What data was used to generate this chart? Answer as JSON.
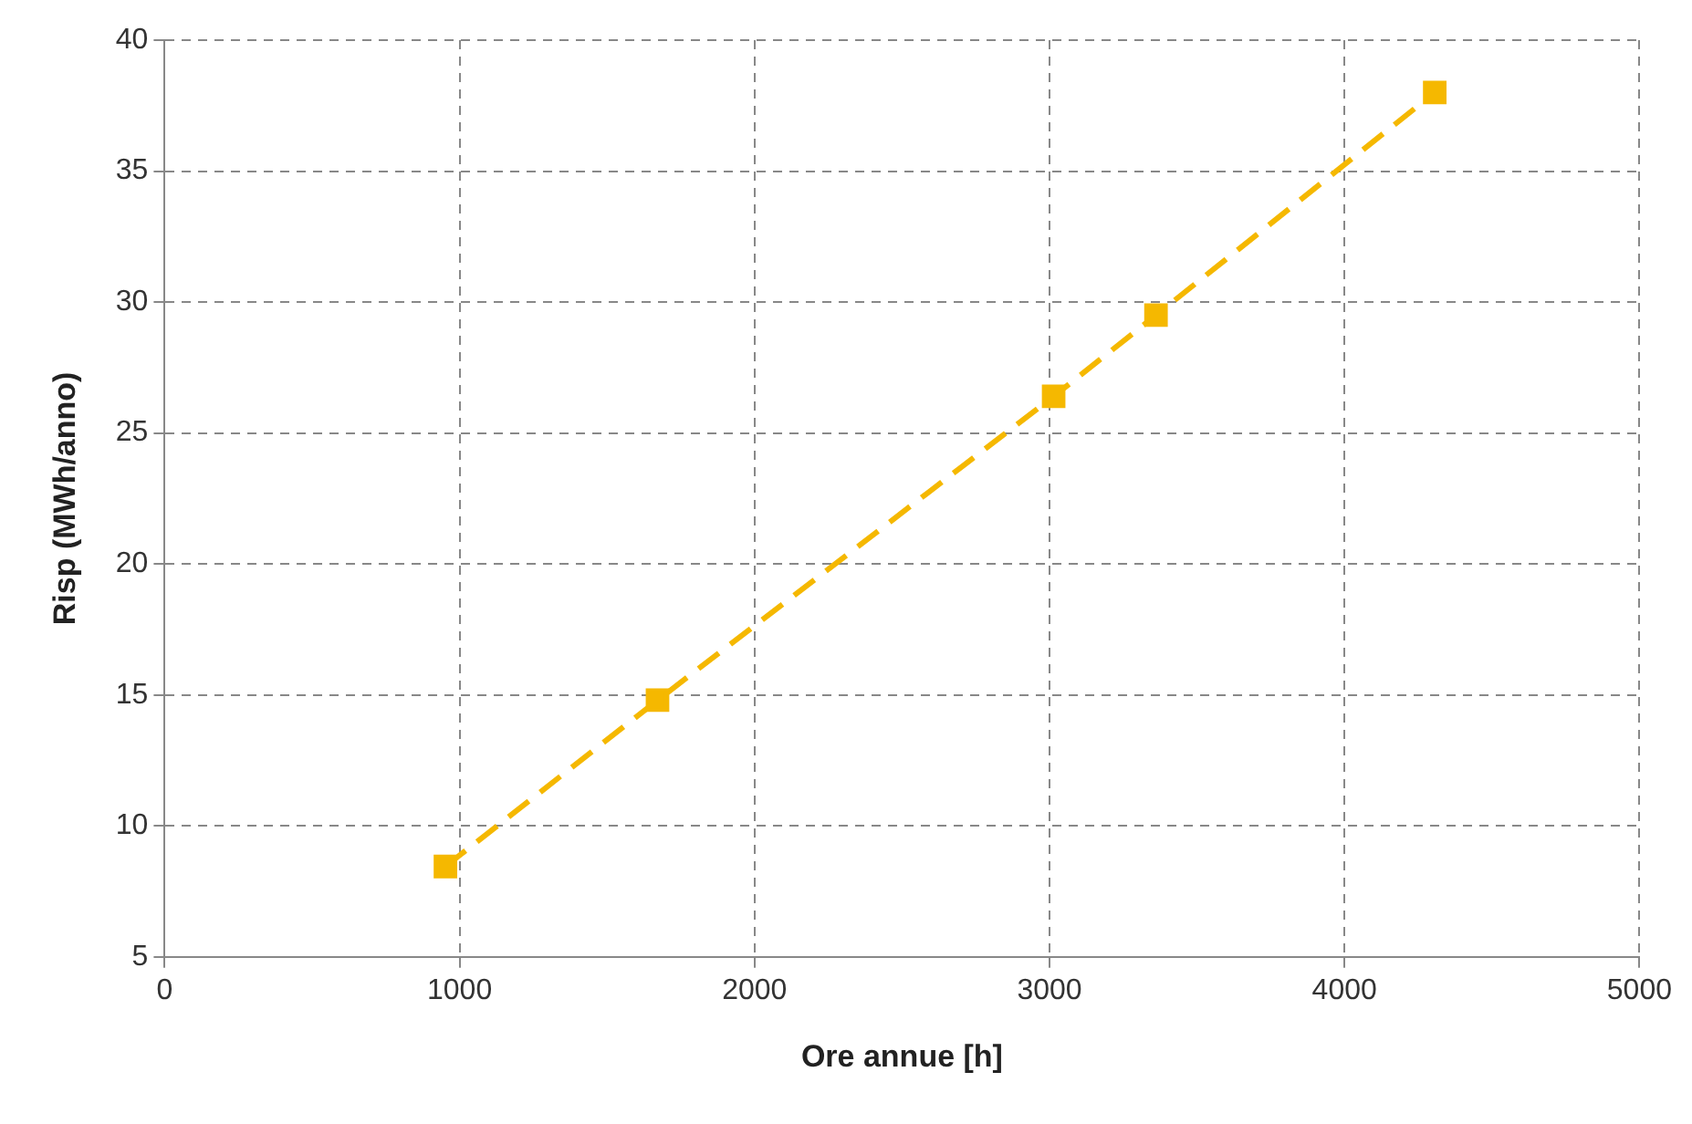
{
  "chart_data": {
    "type": "line",
    "xlabel": "Ore annue [h]",
    "ylabel": "Risp (MWh/anno)",
    "x": [
      952,
      1671,
      3014,
      3361,
      4306
    ],
    "series": [
      {
        "color": "#f5b800",
        "values": [
          8.45,
          14.8,
          26.4,
          29.5,
          38.0
        ]
      }
    ],
    "xlim": [
      0,
      5000
    ],
    "xticks": [
      0,
      1000,
      2000,
      3000,
      4000,
      5000
    ],
    "ylim": [
      5,
      40
    ],
    "yticks": [
      5,
      10,
      15,
      20,
      25,
      30,
      35,
      40
    ],
    "grid": true,
    "legend": false,
    "marker": "square",
    "line_style": "dashed"
  }
}
